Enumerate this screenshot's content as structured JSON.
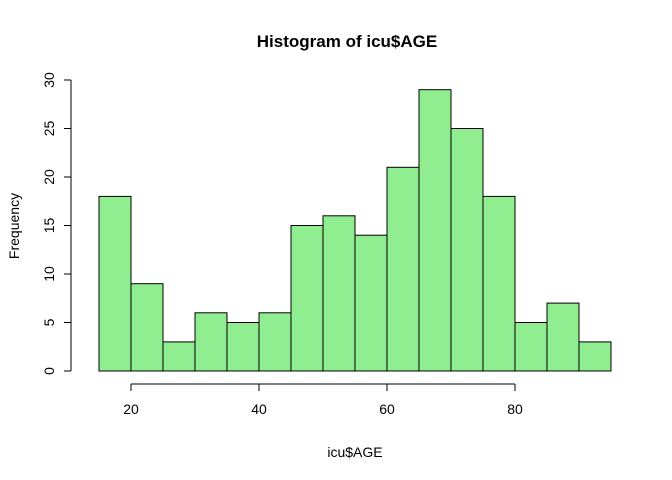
{
  "chart_data": {
    "type": "bar",
    "subtype": "histogram",
    "title": "Histogram of icu$AGE",
    "xlabel": "icu$AGE",
    "ylabel": "Frequency",
    "bin_edges": [
      15,
      20,
      25,
      30,
      35,
      40,
      45,
      50,
      55,
      60,
      65,
      70,
      75,
      80,
      85,
      90,
      95
    ],
    "values": [
      18,
      9,
      3,
      6,
      5,
      6,
      15,
      16,
      14,
      21,
      29,
      25,
      18,
      5,
      7,
      3
    ],
    "xlim": [
      15,
      95
    ],
    "ylim": [
      0,
      30
    ],
    "x_ticks": [
      20,
      40,
      60,
      80
    ],
    "y_ticks": [
      0,
      5,
      10,
      15,
      20,
      25,
      30
    ],
    "bar_color": "#90ee90",
    "bar_border_color": "#000000",
    "grid": false,
    "legend": "none"
  }
}
